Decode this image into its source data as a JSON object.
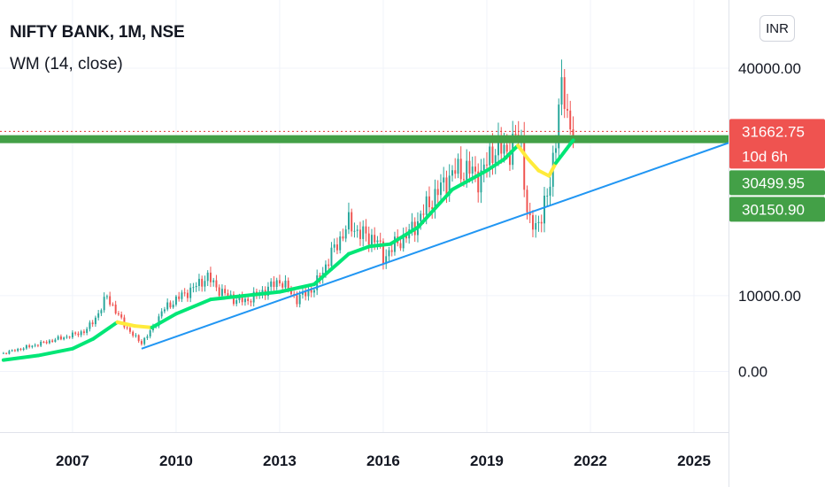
{
  "header": {
    "title": "NIFTY BANK, 1M, NSE",
    "indicator": "WM (14, close)"
  },
  "currency_button": "INR",
  "colors": {
    "up_candle": "#26a69a",
    "down_candle": "#ef5350",
    "ma_up": "#00e676",
    "ma_down": "#ffeb3b",
    "trendline": "#2196f3",
    "horizontal_level": "#43a047",
    "price_line": "#e53935"
  },
  "chart_data": {
    "type": "candlestick",
    "title": "NIFTY BANK, 1M, NSE",
    "indicator": "WM (14, close)",
    "x_range": [
      2004.9,
      2026.0
    ],
    "y_range": [
      -8000,
      49000
    ],
    "x_ticks": [
      "2007",
      "2010",
      "2013",
      "2016",
      "2019",
      "2022",
      "2025"
    ],
    "y_ticks": [
      {
        "label": "0.00",
        "value": 0
      },
      {
        "label": "10000.00",
        "value": 10000
      },
      {
        "label": "30150.90",
        "value": 30150.9
      },
      {
        "label": "30499.95",
        "value": 30499.95
      },
      {
        "label": "31662.75",
        "value": 31662.75
      },
      {
        "label": "40000.00",
        "value": 40000
      }
    ],
    "price_path": [
      [
        2005.0,
        2400
      ],
      [
        2005.5,
        3000
      ],
      [
        2006.0,
        3600
      ],
      [
        2006.5,
        4200
      ],
      [
        2007.0,
        4800
      ],
      [
        2007.4,
        5400
      ],
      [
        2007.8,
        8000
      ],
      [
        2008.0,
        10000
      ],
      [
        2008.3,
        7500
      ],
      [
        2008.7,
        5000
      ],
      [
        2009.0,
        3800
      ],
      [
        2009.3,
        5500
      ],
      [
        2009.6,
        8000
      ],
      [
        2010.0,
        9500
      ],
      [
        2010.5,
        11000
      ],
      [
        2010.9,
        12500
      ],
      [
        2011.3,
        10500
      ],
      [
        2011.7,
        9500
      ],
      [
        2012.0,
        9300
      ],
      [
        2012.5,
        10500
      ],
      [
        2013.0,
        12000
      ],
      [
        2013.5,
        9500
      ],
      [
        2013.8,
        10500
      ],
      [
        2014.0,
        11000
      ],
      [
        2014.5,
        15500
      ],
      [
        2015.0,
        19500
      ],
      [
        2015.4,
        18000
      ],
      [
        2015.8,
        17500
      ],
      [
        2016.0,
        15000
      ],
      [
        2016.3,
        16500
      ],
      [
        2016.8,
        18500
      ],
      [
        2017.3,
        22000
      ],
      [
        2017.8,
        25000
      ],
      [
        2018.1,
        26500
      ],
      [
        2018.5,
        26500
      ],
      [
        2018.8,
        25500
      ],
      [
        2019.2,
        29500
      ],
      [
        2019.6,
        29000
      ],
      [
        2019.9,
        31000
      ],
      [
        2020.0,
        30000
      ],
      [
        2020.2,
        19500
      ],
      [
        2020.4,
        19000
      ],
      [
        2020.6,
        21000
      ],
      [
        2020.8,
        23500
      ],
      [
        2020.95,
        29500
      ],
      [
        2021.1,
        35500
      ],
      [
        2021.2,
        37000
      ],
      [
        2021.35,
        33500
      ],
      [
        2021.5,
        31662.75
      ]
    ],
    "weighted_ma": [
      [
        2005.0,
        1500
      ],
      [
        2006.0,
        2100
      ],
      [
        2007.0,
        3000
      ],
      [
        2007.6,
        4300
      ],
      [
        2008.3,
        6500
      ],
      [
        2008.8,
        6000
      ],
      [
        2009.3,
        5800
      ],
      [
        2010.0,
        7600
      ],
      [
        2011.0,
        9500
      ],
      [
        2012.0,
        10000
      ],
      [
        2013.0,
        10500
      ],
      [
        2014.0,
        11500
      ],
      [
        2014.5,
        13500
      ],
      [
        2015.0,
        15500
      ],
      [
        2015.6,
        16500
      ],
      [
        2016.2,
        16800
      ],
      [
        2017.0,
        19000
      ],
      [
        2018.0,
        24000
      ],
      [
        2019.0,
        26500
      ],
      [
        2019.5,
        28000
      ],
      [
        2019.9,
        29800
      ],
      [
        2020.2,
        28000
      ],
      [
        2020.5,
        26500
      ],
      [
        2020.8,
        25800
      ],
      [
        2021.0,
        27500
      ],
      [
        2021.3,
        29300
      ],
      [
        2021.5,
        30499.95
      ]
    ],
    "weighted_ma_down_segments": [
      [
        2008.3,
        2009.3
      ],
      [
        2020.0,
        2020.9
      ]
    ],
    "trendline": {
      "from": [
        2009.0,
        3000
      ],
      "to": [
        2026.0,
        30150.9
      ]
    },
    "horizontal_level": 30700,
    "last_price": 31662.75,
    "countdown": "10d 6h",
    "price_labels": [
      {
        "text": "31662.75",
        "value": 31662.75,
        "color": "#ef5350"
      },
      {
        "text": "30499.95",
        "value": 30499.95,
        "color": "#43a047"
      },
      {
        "text": "30150.90",
        "value": 30150.9,
        "color": "#43a047"
      }
    ]
  }
}
